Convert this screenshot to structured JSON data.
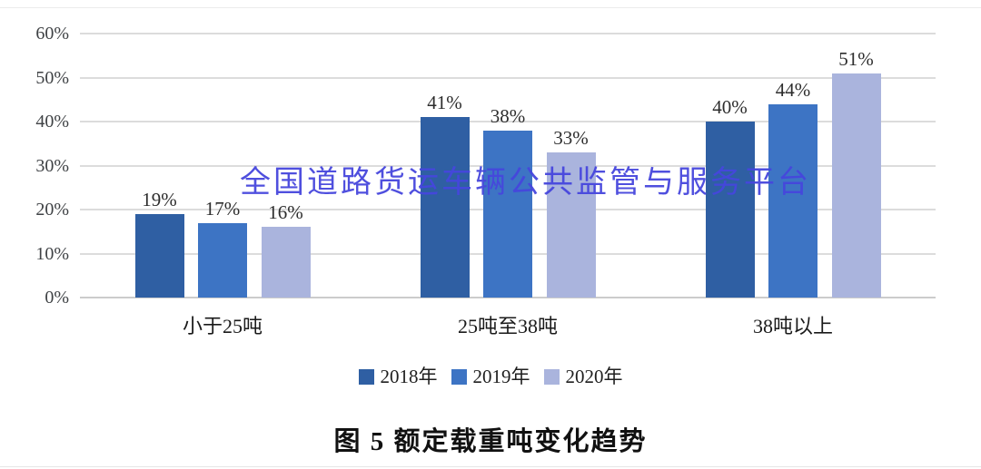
{
  "figure": {
    "background": "#ffffff"
  },
  "watermark": {
    "text": "全国道路货运车辆公共监管与服务平台",
    "color": "#4646dd"
  },
  "chart_data": {
    "type": "bar",
    "title": "图 5  额定载重吨变化趋势",
    "categories": [
      "小于25吨",
      "25吨至38吨",
      "38吨以上"
    ],
    "series": [
      {
        "name": "2018年",
        "color": "#2f5fa3",
        "values": [
          19,
          41,
          40
        ]
      },
      {
        "name": "2019年",
        "color": "#3d74c4",
        "values": [
          17,
          38,
          44
        ]
      },
      {
        "name": "2020年",
        "color": "#aab4dd",
        "values": [
          16,
          33,
          51
        ]
      }
    ],
    "value_labels": [
      [
        "19%",
        "41%",
        "40%"
      ],
      [
        "17%",
        "38%",
        "44%"
      ],
      [
        "16%",
        "33%",
        "51%"
      ]
    ],
    "xlabel": "",
    "ylabel": "",
    "ylim": [
      0,
      60
    ],
    "grid": true,
    "legend_position": "bottom",
    "y_axis": {
      "ticks": [
        {
          "label": "0%",
          "value": 0
        },
        {
          "label": "10%",
          "value": 10
        },
        {
          "label": "20%",
          "value": 20
        },
        {
          "label": "30%",
          "value": 30
        },
        {
          "label": "40%",
          "value": 40
        },
        {
          "label": "50%",
          "value": 50
        },
        {
          "label": "60%",
          "value": 60
        }
      ]
    }
  }
}
